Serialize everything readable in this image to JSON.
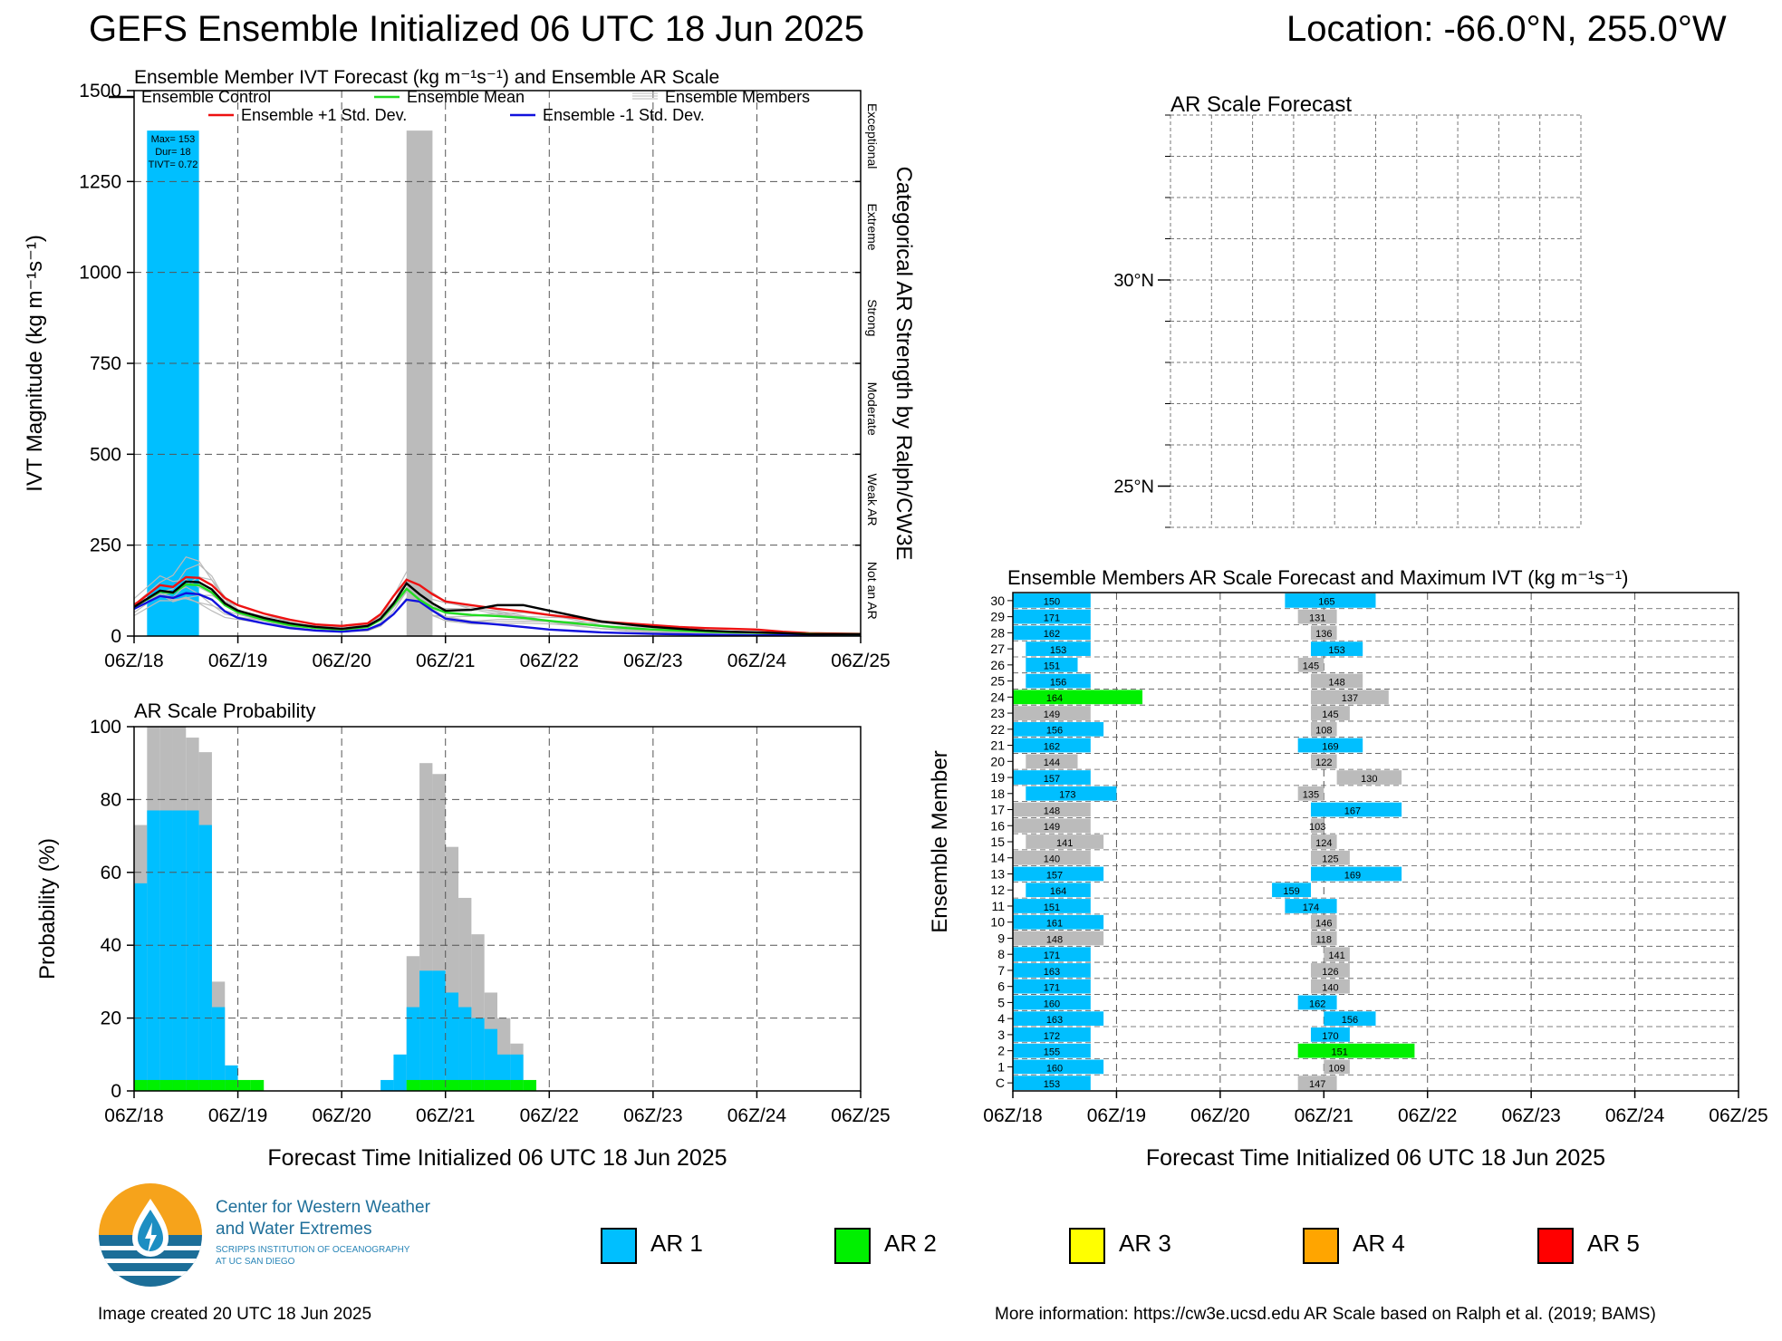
{
  "title": "GEFS Ensemble Initialized 06 UTC 18 Jun 2025",
  "location": "Location: -66.0°N, 255.0°W",
  "colors": {
    "ar1": "#00bfff",
    "ar2": "#00f000",
    "ar3": "#ffff00",
    "ar4": "#ffa500",
    "ar5": "#ff0000",
    "members": "#bbbbbb",
    "control": "#000000",
    "mean": "#22dd22",
    "plus_std": "#ee1111",
    "minus_std": "#1111dd"
  },
  "chart_data": [
    {
      "id": "ivt",
      "type": "line",
      "title": "Ensemble Member IVT Forecast (kg m⁻¹s⁻¹) and Ensemble AR Scale",
      "ylabel": "IVT Magnitude (kg m⁻¹s⁻¹)",
      "right_label": "Categorical AR Strength by Ralph/CW3E",
      "xlim": [
        0,
        168
      ],
      "ylim": [
        0,
        1500
      ],
      "yticks": [
        0,
        250,
        500,
        750,
        1000,
        1250,
        1500
      ],
      "xtick_labels": [
        "06Z/18",
        "06Z/19",
        "06Z/20",
        "06Z/21",
        "06Z/22",
        "06Z/23",
        "06Z/24",
        "06Z/25"
      ],
      "categories_right": [
        {
          "label": "Not an AR",
          "from": 0,
          "to": 250
        },
        {
          "label": "Weak AR",
          "from": 250,
          "to": 500
        },
        {
          "label": "Moderate",
          "from": 500,
          "to": 750
        },
        {
          "label": "Strong",
          "from": 750,
          "to": 1000
        },
        {
          "label": "Extreme",
          "from": 1000,
          "to": 1250
        },
        {
          "label": "Exceptional",
          "from": 1250,
          "to": 1500
        }
      ],
      "legend": [
        {
          "name": "Ensemble Control",
          "color_key": "control"
        },
        {
          "name": "Ensemble Mean",
          "color_key": "mean"
        },
        {
          "name": "Ensemble Members",
          "color_key": "members"
        },
        {
          "name": "Ensemble +1 Std. Dev.",
          "color_key": "plus_std"
        },
        {
          "name": "Ensemble -1 Std. Dev.",
          "color_key": "minus_std"
        }
      ],
      "ar_bars": [
        {
          "start": 3,
          "end": 15,
          "category": "ar1",
          "top": 1390
        },
        {
          "start": 63,
          "end": 69,
          "category": "gray",
          "top": 1390
        }
      ],
      "annotation": [
        "Max= 153",
        "Dur= 18",
        "TIVT= 0.72"
      ],
      "x": [
        0,
        6,
        9,
        12,
        15,
        18,
        21,
        24,
        30,
        36,
        42,
        48,
        54,
        57,
        60,
        63,
        66,
        69,
        72,
        78,
        84,
        90,
        96,
        102,
        108,
        114,
        120,
        126,
        132,
        138,
        144,
        150,
        156,
        162,
        168
      ],
      "series": [
        {
          "name": "Ensemble Control",
          "key": "control",
          "values": [
            80,
            125,
            120,
            150,
            148,
            128,
            90,
            70,
            50,
            35,
            25,
            20,
            28,
            48,
            90,
            145,
            115,
            90,
            70,
            72,
            85,
            85,
            70,
            55,
            40,
            32,
            25,
            20,
            15,
            12,
            10,
            8,
            5,
            5,
            5
          ]
        },
        {
          "name": "Ensemble Mean",
          "key": "mean",
          "values": [
            80,
            122,
            118,
            142,
            140,
            120,
            85,
            65,
            45,
            30,
            22,
            18,
            25,
            45,
            85,
            130,
            100,
            78,
            65,
            58,
            55,
            50,
            42,
            35,
            28,
            22,
            18,
            15,
            12,
            10,
            9,
            8,
            6,
            5,
            5
          ]
        },
        {
          "name": "Ensemble +1 Std. Dev.",
          "key": "plus_std",
          "values": [
            85,
            140,
            135,
            162,
            160,
            140,
            105,
            85,
            62,
            45,
            32,
            28,
            35,
            60,
            110,
            155,
            140,
            115,
            95,
            85,
            75,
            68,
            58,
            50,
            40,
            35,
            30,
            25,
            22,
            20,
            18,
            12,
            8,
            7,
            6
          ]
        },
        {
          "name": "Ensemble -1 Std. Dev.",
          "key": "minus_std",
          "values": [
            75,
            110,
            105,
            118,
            115,
            100,
            68,
            50,
            35,
            22,
            15,
            12,
            18,
            32,
            60,
            100,
            95,
            70,
            48,
            38,
            32,
            25,
            18,
            14,
            10,
            8,
            6,
            5,
            4,
            3,
            2,
            2,
            2,
            2,
            2
          ]
        }
      ]
    },
    {
      "id": "prob",
      "type": "bar",
      "title": "AR Scale Probability",
      "xlabel": "Forecast Time Initialized 06 UTC 18 Jun 2025",
      "ylabel": "Probability (%)",
      "xlim": [
        0,
        168
      ],
      "ylim": [
        0,
        100
      ],
      "yticks": [
        0,
        20,
        40,
        60,
        80,
        100
      ],
      "xtick_labels": [
        "06Z/18",
        "06Z/19",
        "06Z/20",
        "06Z/21",
        "06Z/22",
        "06Z/23",
        "06Z/24",
        "06Z/25"
      ],
      "bar_width_hours": 3,
      "any_ar": [
        {
          "t": 0,
          "v": 73
        },
        {
          "t": 3,
          "v": 100
        },
        {
          "t": 6,
          "v": 100
        },
        {
          "t": 9,
          "v": 100
        },
        {
          "t": 12,
          "v": 97
        },
        {
          "t": 15,
          "v": 93
        },
        {
          "t": 18,
          "v": 30
        },
        {
          "t": 21,
          "v": 7
        },
        {
          "t": 60,
          "v": 7
        },
        {
          "t": 63,
          "v": 37
        },
        {
          "t": 66,
          "v": 90
        },
        {
          "t": 69,
          "v": 87
        },
        {
          "t": 72,
          "v": 67
        },
        {
          "t": 75,
          "v": 53
        },
        {
          "t": 78,
          "v": 43
        },
        {
          "t": 81,
          "v": 27
        },
        {
          "t": 84,
          "v": 20
        },
        {
          "t": 87,
          "v": 13
        }
      ],
      "ar1": [
        {
          "t": 0,
          "v": 57
        },
        {
          "t": 3,
          "v": 77
        },
        {
          "t": 6,
          "v": 77
        },
        {
          "t": 9,
          "v": 77
        },
        {
          "t": 12,
          "v": 77
        },
        {
          "t": 15,
          "v": 73
        },
        {
          "t": 18,
          "v": 23
        },
        {
          "t": 21,
          "v": 7
        },
        {
          "t": 57,
          "v": 3
        },
        {
          "t": 60,
          "v": 10
        },
        {
          "t": 63,
          "v": 23
        },
        {
          "t": 66,
          "v": 33
        },
        {
          "t": 69,
          "v": 33
        },
        {
          "t": 72,
          "v": 27
        },
        {
          "t": 75,
          "v": 23
        },
        {
          "t": 78,
          "v": 20
        },
        {
          "t": 81,
          "v": 17
        },
        {
          "t": 84,
          "v": 10
        },
        {
          "t": 87,
          "v": 10
        }
      ],
      "ar2": [
        {
          "t": 0,
          "v": 3
        },
        {
          "t": 3,
          "v": 3
        },
        {
          "t": 6,
          "v": 3
        },
        {
          "t": 9,
          "v": 3
        },
        {
          "t": 12,
          "v": 3
        },
        {
          "t": 15,
          "v": 3
        },
        {
          "t": 18,
          "v": 3
        },
        {
          "t": 21,
          "v": 3
        },
        {
          "t": 24,
          "v": 3
        },
        {
          "t": 27,
          "v": 3
        },
        {
          "t": 63,
          "v": 3
        },
        {
          "t": 66,
          "v": 3
        },
        {
          "t": 69,
          "v": 3
        },
        {
          "t": 72,
          "v": 3
        },
        {
          "t": 75,
          "v": 3
        },
        {
          "t": 78,
          "v": 3
        },
        {
          "t": 81,
          "v": 3
        },
        {
          "t": 84,
          "v": 3
        },
        {
          "t": 87,
          "v": 3
        },
        {
          "t": 90,
          "v": 3
        }
      ]
    },
    {
      "id": "map",
      "type": "map",
      "title": "AR Scale Forecast",
      "ytick_labels": [
        "30°N",
        "25°N"
      ]
    },
    {
      "id": "members",
      "type": "bar",
      "title": "Ensemble Members AR Scale Forecast and Maximum IVT (kg m⁻¹s⁻¹)",
      "xlabel": "Forecast Time Initialized 06 UTC 18 Jun 2025",
      "ylabel": "Ensemble Member",
      "xlim": [
        0,
        168
      ],
      "xtick_labels": [
        "06Z/18",
        "06Z/19",
        "06Z/20",
        "06Z/21",
        "06Z/22",
        "06Z/23",
        "06Z/24",
        "06Z/25"
      ],
      "member_labels": [
        "C",
        "1",
        "2",
        "3",
        "4",
        "5",
        "6",
        "7",
        "8",
        "9",
        "10",
        "11",
        "12",
        "13",
        "14",
        "15",
        "16",
        "17",
        "18",
        "19",
        "20",
        "21",
        "22",
        "23",
        "24",
        "25",
        "26",
        "27",
        "28",
        "29",
        "30"
      ],
      "events": [
        [
          {
            "s": 0,
            "e": 18,
            "c": "ar1",
            "v": "153"
          },
          {
            "s": 66,
            "e": 75,
            "c": "gray",
            "v": "147"
          }
        ],
        [
          {
            "s": 0,
            "e": 21,
            "c": "ar1",
            "v": "160"
          },
          {
            "s": 72,
            "e": 78,
            "c": "gray",
            "v": "109"
          }
        ],
        [
          {
            "s": 0,
            "e": 18,
            "c": "ar1",
            "v": "155"
          },
          {
            "s": 66,
            "e": 93,
            "c": "ar2",
            "v": "151"
          }
        ],
        [
          {
            "s": 0,
            "e": 18,
            "c": "ar1",
            "v": "172"
          },
          {
            "s": 69,
            "e": 78,
            "c": "ar1",
            "v": "170"
          }
        ],
        [
          {
            "s": 0,
            "e": 21,
            "c": "ar1",
            "v": "163"
          },
          {
            "s": 72,
            "e": 84,
            "c": "ar1",
            "v": "156"
          }
        ],
        [
          {
            "s": 0,
            "e": 18,
            "c": "ar1",
            "v": "160"
          },
          {
            "s": 66,
            "e": 75,
            "c": "ar1",
            "v": "162"
          }
        ],
        [
          {
            "s": 0,
            "e": 18,
            "c": "ar1",
            "v": "171"
          },
          {
            "s": 69,
            "e": 78,
            "c": "gray",
            "v": "140"
          }
        ],
        [
          {
            "s": 0,
            "e": 18,
            "c": "ar1",
            "v": "163"
          },
          {
            "s": 69,
            "e": 78,
            "c": "gray",
            "v": "126"
          }
        ],
        [
          {
            "s": 0,
            "e": 18,
            "c": "ar1",
            "v": "171"
          },
          {
            "s": 72,
            "e": 78,
            "c": "gray",
            "v": "141"
          }
        ],
        [
          {
            "s": 0,
            "e": 21,
            "c": "gray",
            "v": "148"
          },
          {
            "s": 69,
            "e": 75,
            "c": "gray",
            "v": "118"
          }
        ],
        [
          {
            "s": 0,
            "e": 21,
            "c": "ar1",
            "v": "161"
          },
          {
            "s": 69,
            "e": 75,
            "c": "gray",
            "v": "146"
          }
        ],
        [
          {
            "s": 0,
            "e": 18,
            "c": "ar1",
            "v": "151"
          },
          {
            "s": 63,
            "e": 75,
            "c": "ar1",
            "v": "174"
          }
        ],
        [
          {
            "s": 3,
            "e": 18,
            "c": "ar1",
            "v": "164"
          },
          {
            "s": 60,
            "e": 69,
            "c": "ar1",
            "v": "159"
          }
        ],
        [
          {
            "s": 0,
            "e": 21,
            "c": "ar1",
            "v": "157"
          },
          {
            "s": 69,
            "e": 90,
            "c": "ar1",
            "v": "169"
          }
        ],
        [
          {
            "s": 0,
            "e": 18,
            "c": "gray",
            "v": "140"
          },
          {
            "s": 69,
            "e": 78,
            "c": "gray",
            "v": "125"
          }
        ],
        [
          {
            "s": 3,
            "e": 21,
            "c": "gray",
            "v": "141"
          },
          {
            "s": 69,
            "e": 75,
            "c": "gray",
            "v": "124"
          }
        ],
        [
          {
            "s": 0,
            "e": 18,
            "c": "gray",
            "v": "149"
          },
          {
            "s": 69,
            "e": 72,
            "c": "gray",
            "v": "103"
          }
        ],
        [
          {
            "s": 0,
            "e": 18,
            "c": "gray",
            "v": "148"
          },
          {
            "s": 69,
            "e": 90,
            "c": "ar1",
            "v": "167"
          }
        ],
        [
          {
            "s": 3,
            "e": 24,
            "c": "ar1",
            "v": "173"
          },
          {
            "s": 66,
            "e": 72,
            "c": "gray",
            "v": "135"
          }
        ],
        [
          {
            "s": 0,
            "e": 18,
            "c": "ar1",
            "v": "157"
          },
          {
            "s": 75,
            "e": 90,
            "c": "gray",
            "v": "130"
          }
        ],
        [
          {
            "s": 3,
            "e": 15,
            "c": "gray",
            "v": "144"
          },
          {
            "s": 69,
            "e": 75,
            "c": "gray",
            "v": "122"
          }
        ],
        [
          {
            "s": 0,
            "e": 18,
            "c": "ar1",
            "v": "162"
          },
          {
            "s": 66,
            "e": 81,
            "c": "ar1",
            "v": "169"
          }
        ],
        [
          {
            "s": 0,
            "e": 21,
            "c": "ar1",
            "v": "156"
          },
          {
            "s": 69,
            "e": 75,
            "c": "gray",
            "v": "108"
          }
        ],
        [
          {
            "s": 0,
            "e": 18,
            "c": "gray",
            "v": "149"
          },
          {
            "s": 69,
            "e": 78,
            "c": "gray",
            "v": "145"
          }
        ],
        [
          {
            "s": 0,
            "e": 30,
            "c": "ar2",
            "v": "164"
          },
          {
            "s": 69,
            "e": 87,
            "c": "gray",
            "v": "137"
          }
        ],
        [
          {
            "s": 3,
            "e": 18,
            "c": "ar1",
            "v": "156"
          },
          {
            "s": 69,
            "e": 81,
            "c": "gray",
            "v": "148"
          }
        ],
        [
          {
            "s": 3,
            "e": 15,
            "c": "ar1",
            "v": "151"
          },
          {
            "s": 66,
            "e": 72,
            "c": "gray",
            "v": "145"
          }
        ],
        [
          {
            "s": 3,
            "e": 18,
            "c": "ar1",
            "v": "153"
          },
          {
            "s": 69,
            "e": 81,
            "c": "ar1",
            "v": "153"
          }
        ],
        [
          {
            "s": 0,
            "e": 18,
            "c": "ar1",
            "v": "162"
          },
          {
            "s": 69,
            "e": 75,
            "c": "gray",
            "v": "136"
          }
        ],
        [
          {
            "s": 0,
            "e": 18,
            "c": "ar1",
            "v": "171"
          },
          {
            "s": 66,
            "e": 75,
            "c": "gray",
            "v": "131"
          }
        ],
        [
          {
            "s": 0,
            "e": 18,
            "c": "ar1",
            "v": "150"
          },
          {
            "s": 63,
            "e": 84,
            "c": "ar1",
            "v": "165"
          }
        ]
      ]
    }
  ],
  "legend": [
    {
      "label": "AR 1",
      "color_key": "ar1"
    },
    {
      "label": "AR 2",
      "color_key": "ar2"
    },
    {
      "label": "AR 3",
      "color_key": "ar3"
    },
    {
      "label": "AR 4",
      "color_key": "ar4"
    },
    {
      "label": "AR 5",
      "color_key": "ar5"
    }
  ],
  "logo": {
    "line1": "Center for Western Weather",
    "line2": "and Water Extremes",
    "line3": "SCRIPPS INSTITUTION OF OCEANOGRAPHY",
    "line4": "AT UC SAN DIEGO"
  },
  "footer": {
    "created": "Image created 20 UTC 18 Jun 2025",
    "info": "More information: https://cw3e.ucsd.edu AR Scale based on Ralph et al. (2019; BAMS)"
  }
}
